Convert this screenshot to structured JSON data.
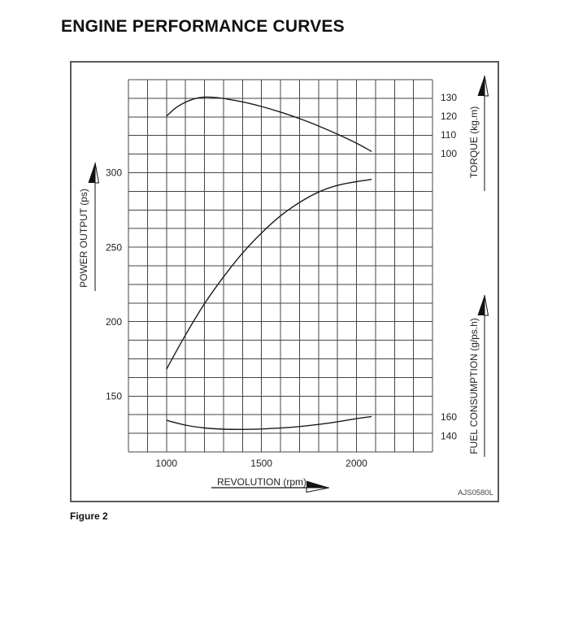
{
  "page": {
    "title": "ENGINE PERFORMANCE CURVES",
    "figure_caption": "Figure 2",
    "figure_code": "AJS0580L"
  },
  "chart_data": {
    "type": "line",
    "title": "ENGINE PERFORMANCE CURVES",
    "grid": {
      "cols": 16,
      "rows": 20,
      "grid_on": true
    },
    "x_axis": {
      "label": "REVOLUTION (rpm)",
      "ticks": [
        1000,
        1500,
        2000
      ],
      "range": [
        800,
        2400
      ],
      "rpm_per_cell": 100
    },
    "left_axis": {
      "label": "POWER OUTPUT (ps)",
      "ticks": [
        300,
        250,
        200,
        150
      ],
      "range": [
        112.5,
        362.5
      ],
      "units_per_cell": 12.5
    },
    "right_axis_top": {
      "label": "TORQUE (kg.m)",
      "ticks": [
        130,
        120,
        110,
        100
      ],
      "units_per_cell": 10
    },
    "right_axis_bottom": {
      "label": "FUEL CONSUMPTION (g/ps.h)",
      "ticks": [
        160,
        140
      ],
      "units_per_cell": 20
    },
    "series": [
      {
        "name": "torque",
        "axis": "torque",
        "x": [
          1000,
          1050,
          1100,
          1150,
          1200,
          1250,
          1300,
          1400,
          1500,
          1600,
          1700,
          1800,
          1900,
          2000,
          2080
        ],
        "values": [
          120,
          124.5,
          127.5,
          129.4,
          130.2,
          130.1,
          129.5,
          127.7,
          125.2,
          122.2,
          118.7,
          114.7,
          110.3,
          105.5,
          101
        ]
      },
      {
        "name": "power-output",
        "axis": "power",
        "x": [
          1000,
          1100,
          1200,
          1300,
          1400,
          1500,
          1600,
          1700,
          1800,
          1900,
          2000,
          2080
        ],
        "values": [
          168,
          191,
          212,
          230,
          246,
          259.5,
          271,
          280,
          287,
          291.5,
          294,
          295.5
        ]
      },
      {
        "name": "fuel-consumption",
        "axis": "fuel",
        "x": [
          1000,
          1100,
          1200,
          1300,
          1400,
          1500,
          1600,
          1700,
          1800,
          1900,
          2000,
          2080
        ],
        "values": [
          156.5,
          151.5,
          148.5,
          147.2,
          147,
          147.4,
          148.4,
          150,
          152.2,
          155,
          158.2,
          160.5
        ]
      }
    ],
    "colors": {
      "line": "#1a1a1a",
      "grid": "#454545",
      "text": "#222222",
      "box_border": "#5a5a5a"
    }
  }
}
